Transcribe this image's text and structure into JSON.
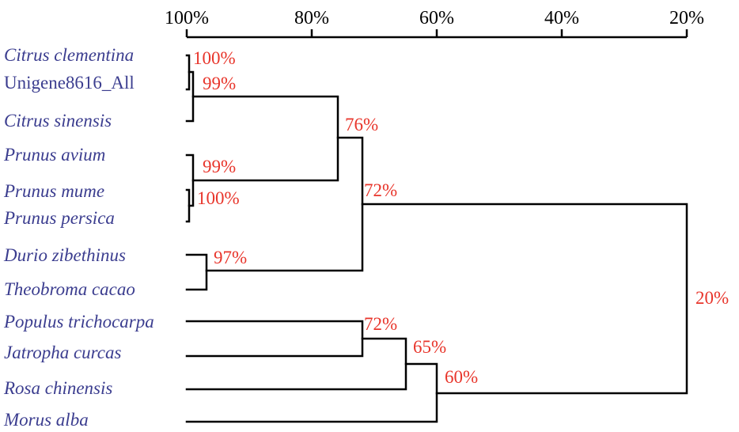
{
  "figure": {
    "axis": {
      "ticks": [
        "100%",
        "80%",
        "60%",
        "40%",
        "20%"
      ]
    },
    "taxa": [
      {
        "label": "Citrus clementina",
        "italic": true
      },
      {
        "label": "Unigene8616_All",
        "italic": false
      },
      {
        "label": "Citrus sinensis",
        "italic": true
      },
      {
        "label": "Prunus avium",
        "italic": true
      },
      {
        "label": "Prunus mume",
        "italic": true
      },
      {
        "label": "Prunus persica",
        "italic": true
      },
      {
        "label": "Durio zibethinus",
        "italic": true
      },
      {
        "label": "Theobroma cacao",
        "italic": true
      },
      {
        "label": "Populus trichocarpa",
        "italic": true
      },
      {
        "label": "Jatropha curcas",
        "italic": true
      },
      {
        "label": "Rosa chinensis",
        "italic": true
      },
      {
        "label": "Morus alba",
        "italic": true
      }
    ],
    "support_values": [
      {
        "id": "clementina-unigene",
        "label": "100%"
      },
      {
        "id": "citrus-clade",
        "label": "99%"
      },
      {
        "id": "mume-persica",
        "label": "100%"
      },
      {
        "id": "prunus-clade",
        "label": "99%"
      },
      {
        "id": "durio-theobroma",
        "label": "97%"
      },
      {
        "id": "citrus-prunus",
        "label": "76%"
      },
      {
        "id": "upper-group",
        "label": "72%"
      },
      {
        "id": "populus-jatropha",
        "label": "72%"
      },
      {
        "id": "plus-rosa",
        "label": "65%"
      },
      {
        "id": "plus-morus",
        "label": "60%"
      },
      {
        "id": "root",
        "label": "20%"
      }
    ],
    "colors": {
      "taxon_text": "#3b3d8f",
      "support_text": "#e8352b",
      "lines": "#000000"
    }
  }
}
